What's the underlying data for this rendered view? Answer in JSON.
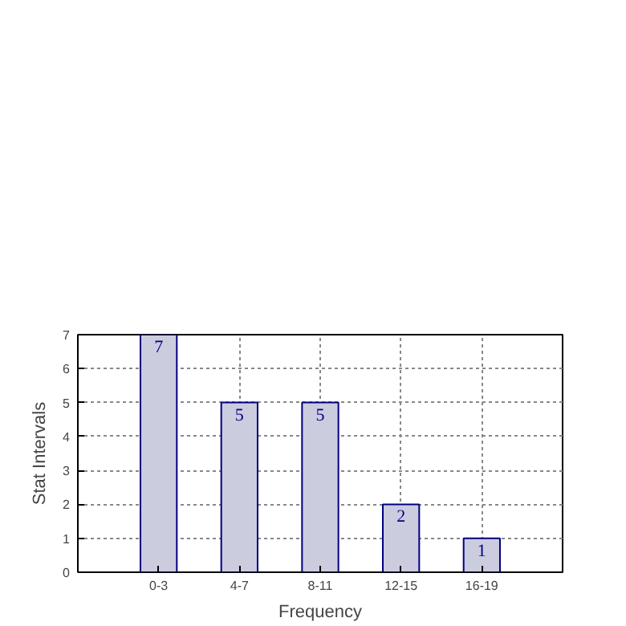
{
  "chart_data": {
    "type": "bar",
    "xlabel": "Frequency",
    "ylabel": "Stat Intervals",
    "categories": [
      "0-3",
      "4-7",
      "8-11",
      "12-15",
      "16-19"
    ],
    "values": [
      7,
      5,
      5,
      2,
      1
    ],
    "color": "#ccccdf",
    "ylim": [
      0,
      7
    ],
    "yticks": [
      0,
      1,
      2,
      3,
      4,
      5,
      6,
      7
    ],
    "grid": true,
    "data_labels": true
  }
}
